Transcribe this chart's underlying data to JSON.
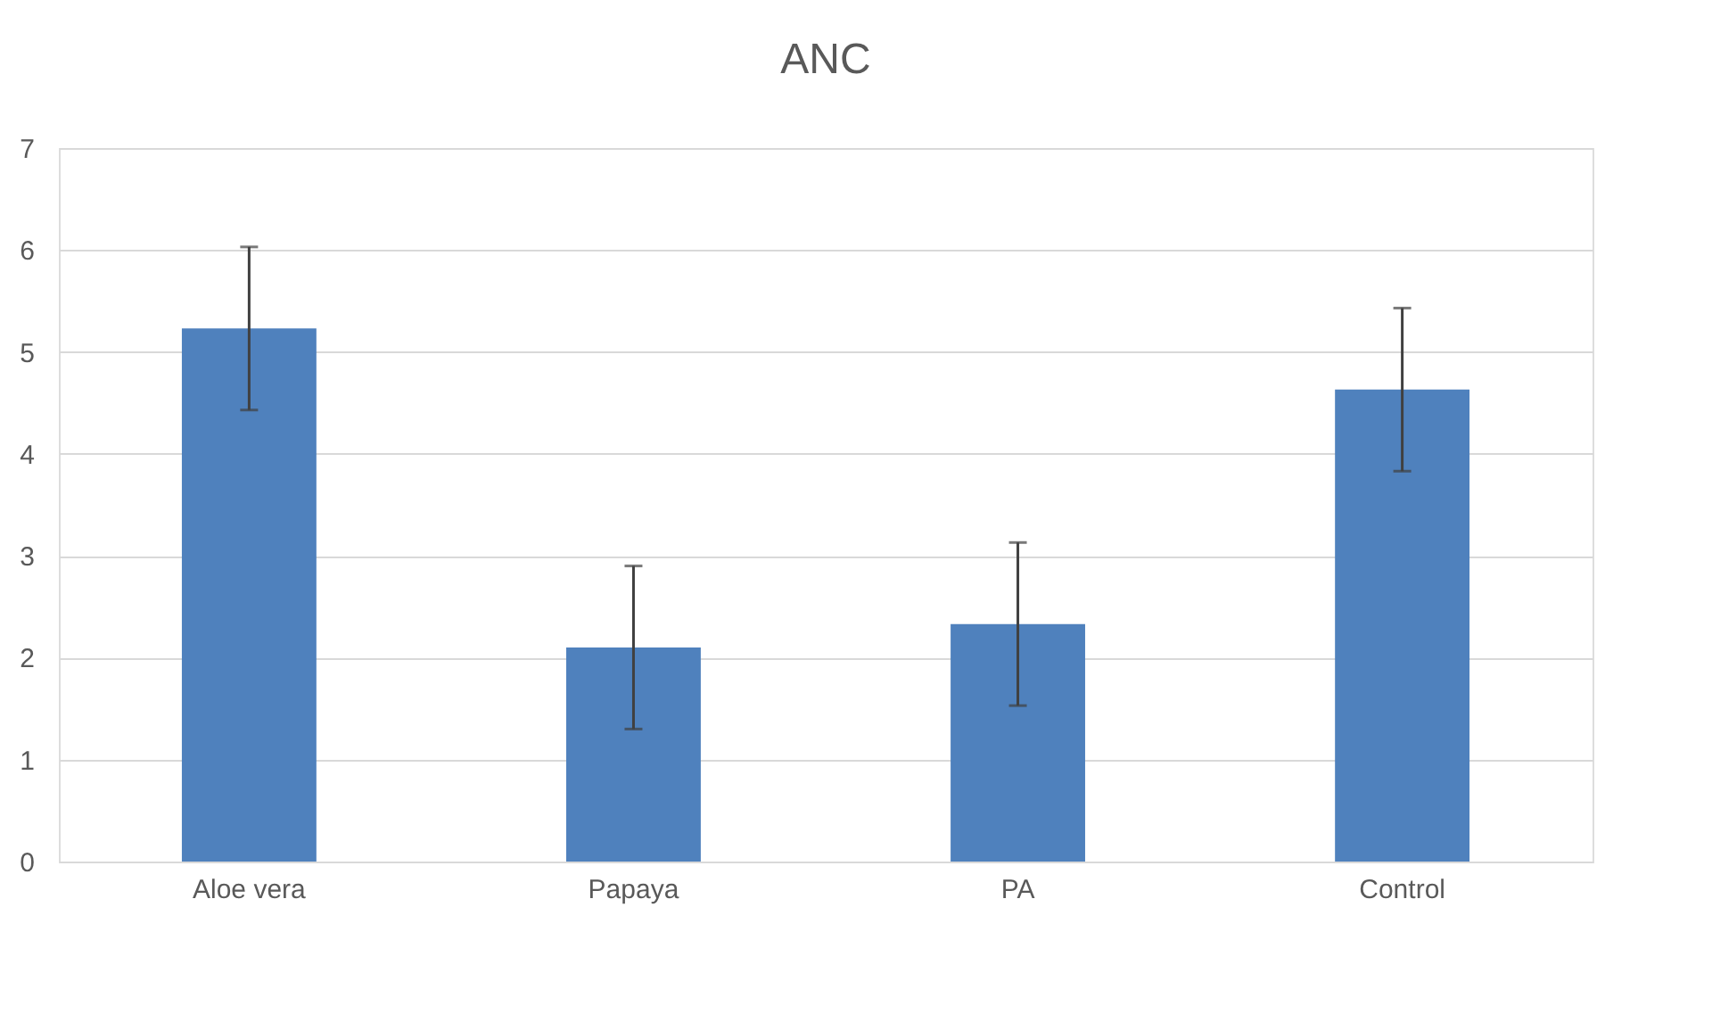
{
  "chart_data": {
    "type": "bar",
    "title": "ANC",
    "categories": [
      "Aloe vera",
      "Papaya",
      "PA",
      "Control"
    ],
    "values": [
      5.23,
      2.1,
      2.33,
      4.63
    ],
    "errors": [
      0.8,
      0.8,
      0.8,
      0.8
    ],
    "color": "#4f81bd",
    "ylim": [
      0,
      7
    ],
    "yticks": [
      0,
      1,
      2,
      3,
      4,
      5,
      6,
      7
    ],
    "grid": "y"
  }
}
